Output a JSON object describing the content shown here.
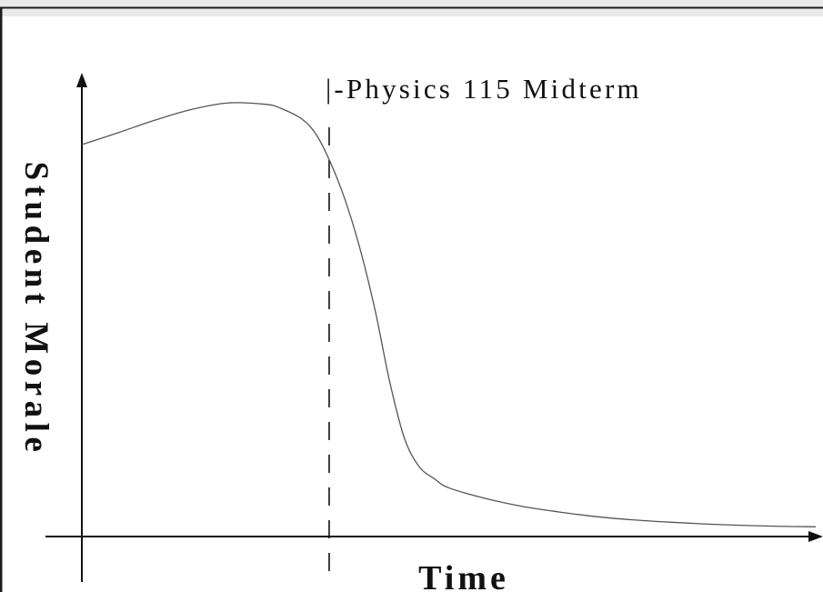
{
  "chart_data": {
    "type": "line",
    "title": "",
    "xlabel": "Time",
    "ylabel": "Student Morale",
    "xlim": [
      0,
      100
    ],
    "ylim": [
      0,
      100
    ],
    "grid": false,
    "ticks": false,
    "series": [
      {
        "x": [
          0,
          5,
          10,
          15,
          20,
          25,
          27,
          30,
          32,
          34,
          36,
          38,
          40,
          42,
          44,
          46,
          48,
          50,
          55,
          60,
          65,
          70,
          75,
          80,
          85,
          90,
          95,
          100
        ],
        "y": [
          84.5,
          87.1,
          89.8,
          92.1,
          93.5,
          93.2,
          92.4,
          90.0,
          86.5,
          80.2,
          72.0,
          61.5,
          48.5,
          33.0,
          21.0,
          15.0,
          12.5,
          10.5,
          8.2,
          6.5,
          5.3,
          4.3,
          3.6,
          3.1,
          2.7,
          2.4,
          2.2,
          2.1
        ]
      }
    ],
    "annotations": [
      {
        "type": "vertical-dashed-line",
        "x": 33.7,
        "label": "|-Physics 115 Midterm"
      }
    ]
  },
  "colors": {
    "frame_top": "#e9e9e9",
    "frame_border": "#1e1e1e",
    "curve": "#555555",
    "axes": "#111111"
  }
}
